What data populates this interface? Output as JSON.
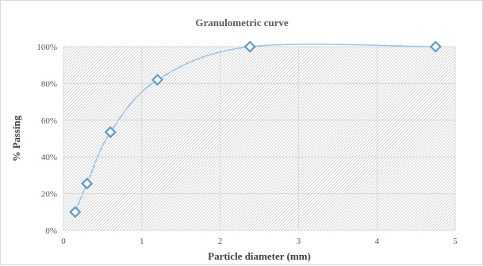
{
  "chart_data": {
    "type": "scatter",
    "title": "Granulometric curve",
    "xlabel": "Particle diameter (mm)",
    "ylabel": "% Passing",
    "xlim": [
      0,
      5
    ],
    "ylim": [
      0,
      100
    ],
    "x_ticks": [
      "0",
      "1",
      "2",
      "3",
      "4",
      "5"
    ],
    "y_ticks": [
      "0%",
      "20%",
      "40%",
      "60%",
      "80%",
      "100%"
    ],
    "grid": true,
    "legend": "none",
    "smoothed_line": true,
    "series": [
      {
        "x": [
          0.15,
          0.3,
          0.6,
          1.2,
          2.38,
          4.75
        ],
        "y": [
          10,
          25.5,
          53.5,
          82,
          100,
          100
        ],
        "line_color": "#9dc3e6",
        "marker_color": "#5b9bd5",
        "marker": "diamond"
      }
    ]
  }
}
